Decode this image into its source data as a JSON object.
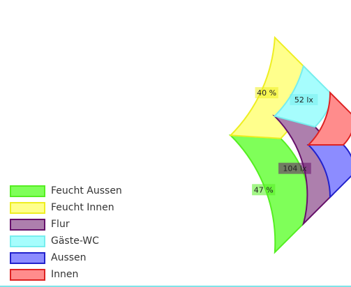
{
  "chart_data": {
    "type": "nested-donut",
    "title": "",
    "rings": [
      {
        "name": "outer",
        "segments": [
          {
            "name": "Feucht Aussen",
            "value": 47,
            "label": "47 %",
            "color": "#7fff59",
            "stroke": "#55ee22"
          },
          {
            "name": "Feucht Innen",
            "value": 40,
            "label": "40 %",
            "color": "#ffff8c",
            "stroke": "#eeee22"
          }
        ]
      },
      {
        "name": "middle",
        "segments": [
          {
            "name": "Flur",
            "value": 104,
            "label": "104 lx",
            "color": "#ad7fad",
            "stroke": "#66116a"
          },
          {
            "name": "Gäste-WC",
            "value": 52,
            "label": "52 lx",
            "color": "#a6fdfd",
            "stroke": "#77eeee"
          }
        ]
      },
      {
        "name": "inner",
        "segments": [
          {
            "name": "Aussen",
            "color": "#8c8cff",
            "stroke": "#2222cc"
          },
          {
            "name": "Innen",
            "color": "#ff8c8c",
            "stroke": "#dd2222"
          }
        ]
      }
    ]
  },
  "legend": {
    "position": "bottom-left",
    "items": [
      {
        "label": "Feucht Aussen",
        "color": "#7fff59",
        "stroke": "#55ee22"
      },
      {
        "label": "Feucht Innen",
        "color": "#ffff8c",
        "stroke": "#eeee22"
      },
      {
        "label": "Flur",
        "color": "#ad7fad",
        "stroke": "#66116a"
      },
      {
        "label": "Gäste-WC",
        "color": "#a6fdfd",
        "stroke": "#77eeee"
      },
      {
        "label": "Aussen",
        "color": "#8c8cff",
        "stroke": "#2222cc"
      },
      {
        "label": "Innen",
        "color": "#ff8c8c",
        "stroke": "#dd2222"
      }
    ]
  }
}
